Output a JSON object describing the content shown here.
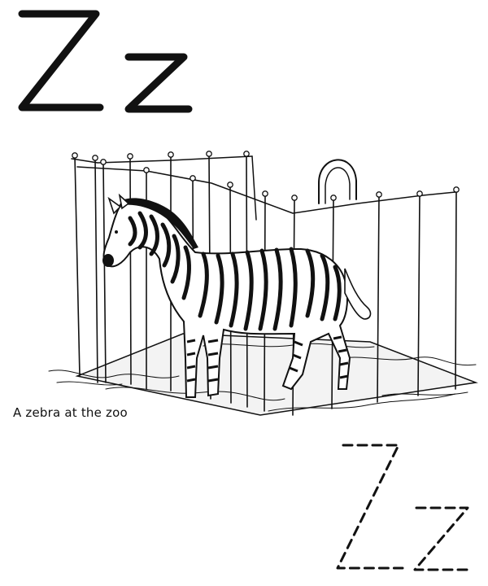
{
  "worksheet": {
    "letter_upper": "Z",
    "letter_lower": "z",
    "caption": "A zebra at the zoo",
    "trace_upper": "Z",
    "trace_lower": "z"
  },
  "colors": {
    "ink": "#111111",
    "paper": "#ffffff"
  },
  "illustration": {
    "subject": "zebra-in-cage"
  }
}
